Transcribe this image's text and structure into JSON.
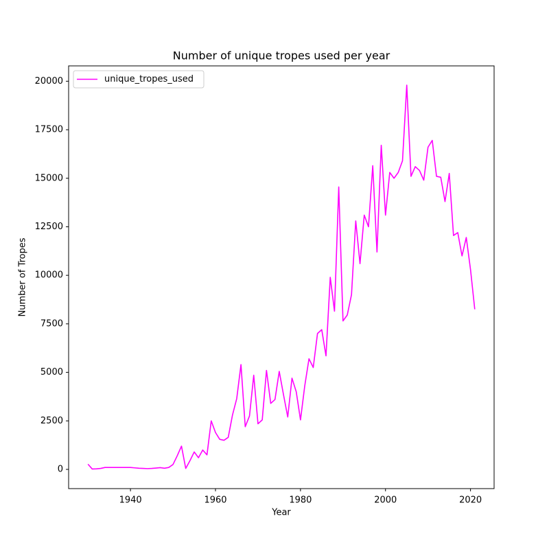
{
  "chart_data": {
    "type": "line",
    "title": "Number of unique tropes used per year",
    "xlabel": "Year",
    "ylabel": "Number of Tropes",
    "x": [
      1930,
      1931,
      1932,
      1933,
      1934,
      1935,
      1936,
      1937,
      1938,
      1939,
      1940,
      1941,
      1942,
      1943,
      1944,
      1945,
      1946,
      1947,
      1948,
      1949,
      1950,
      1951,
      1952,
      1953,
      1954,
      1955,
      1956,
      1957,
      1958,
      1959,
      1960,
      1961,
      1962,
      1963,
      1964,
      1965,
      1966,
      1967,
      1968,
      1969,
      1970,
      1971,
      1972,
      1973,
      1974,
      1975,
      1976,
      1977,
      1978,
      1979,
      1980,
      1981,
      1982,
      1983,
      1984,
      1985,
      1986,
      1987,
      1988,
      1989,
      1990,
      1991,
      1992,
      1993,
      1994,
      1995,
      1996,
      1997,
      1998,
      1999,
      2000,
      2001,
      2002,
      2003,
      2004,
      2005,
      2006,
      2007,
      2008,
      2009,
      2010,
      2011,
      2012,
      2013,
      2014,
      2015,
      2016,
      2017,
      2018,
      2019,
      2020,
      2021
    ],
    "series": [
      {
        "name": "unique_tropes_used",
        "color": "#ff00ff",
        "values": [
          270,
          20,
          30,
          50,
          100,
          100,
          100,
          100,
          100,
          100,
          100,
          80,
          60,
          50,
          40,
          50,
          70,
          90,
          60,
          100,
          250,
          700,
          1200,
          50,
          450,
          900,
          600,
          1000,
          750,
          2500,
          1900,
          1550,
          1500,
          1650,
          2800,
          3650,
          5400,
          2200,
          2750,
          4850,
          2350,
          2550,
          5100,
          3400,
          3600,
          5050,
          3850,
          2700,
          4700,
          4000,
          2550,
          4300,
          5700,
          5250,
          7000,
          7200,
          5850,
          9900,
          8150,
          14550,
          7650,
          7950,
          9000,
          12800,
          10600,
          13100,
          12500,
          15650,
          11200,
          16700,
          13100,
          15300,
          15000,
          15300,
          15900,
          19800,
          15100,
          15600,
          15400,
          14900,
          16600,
          16950,
          15100,
          15050,
          13800,
          15250,
          12050,
          12200,
          11000,
          11950,
          10300,
          8250
        ]
      }
    ],
    "xlim": [
      1925.45,
      2025.55
    ],
    "xticks": [
      1940,
      1960,
      1980,
      2000,
      2020
    ],
    "ylim": [
      -990,
      20790
    ],
    "yticks": [
      0,
      2500,
      5000,
      7500,
      10000,
      12500,
      15000,
      17500,
      20000
    ],
    "legend": "upper left",
    "grid": false
  }
}
